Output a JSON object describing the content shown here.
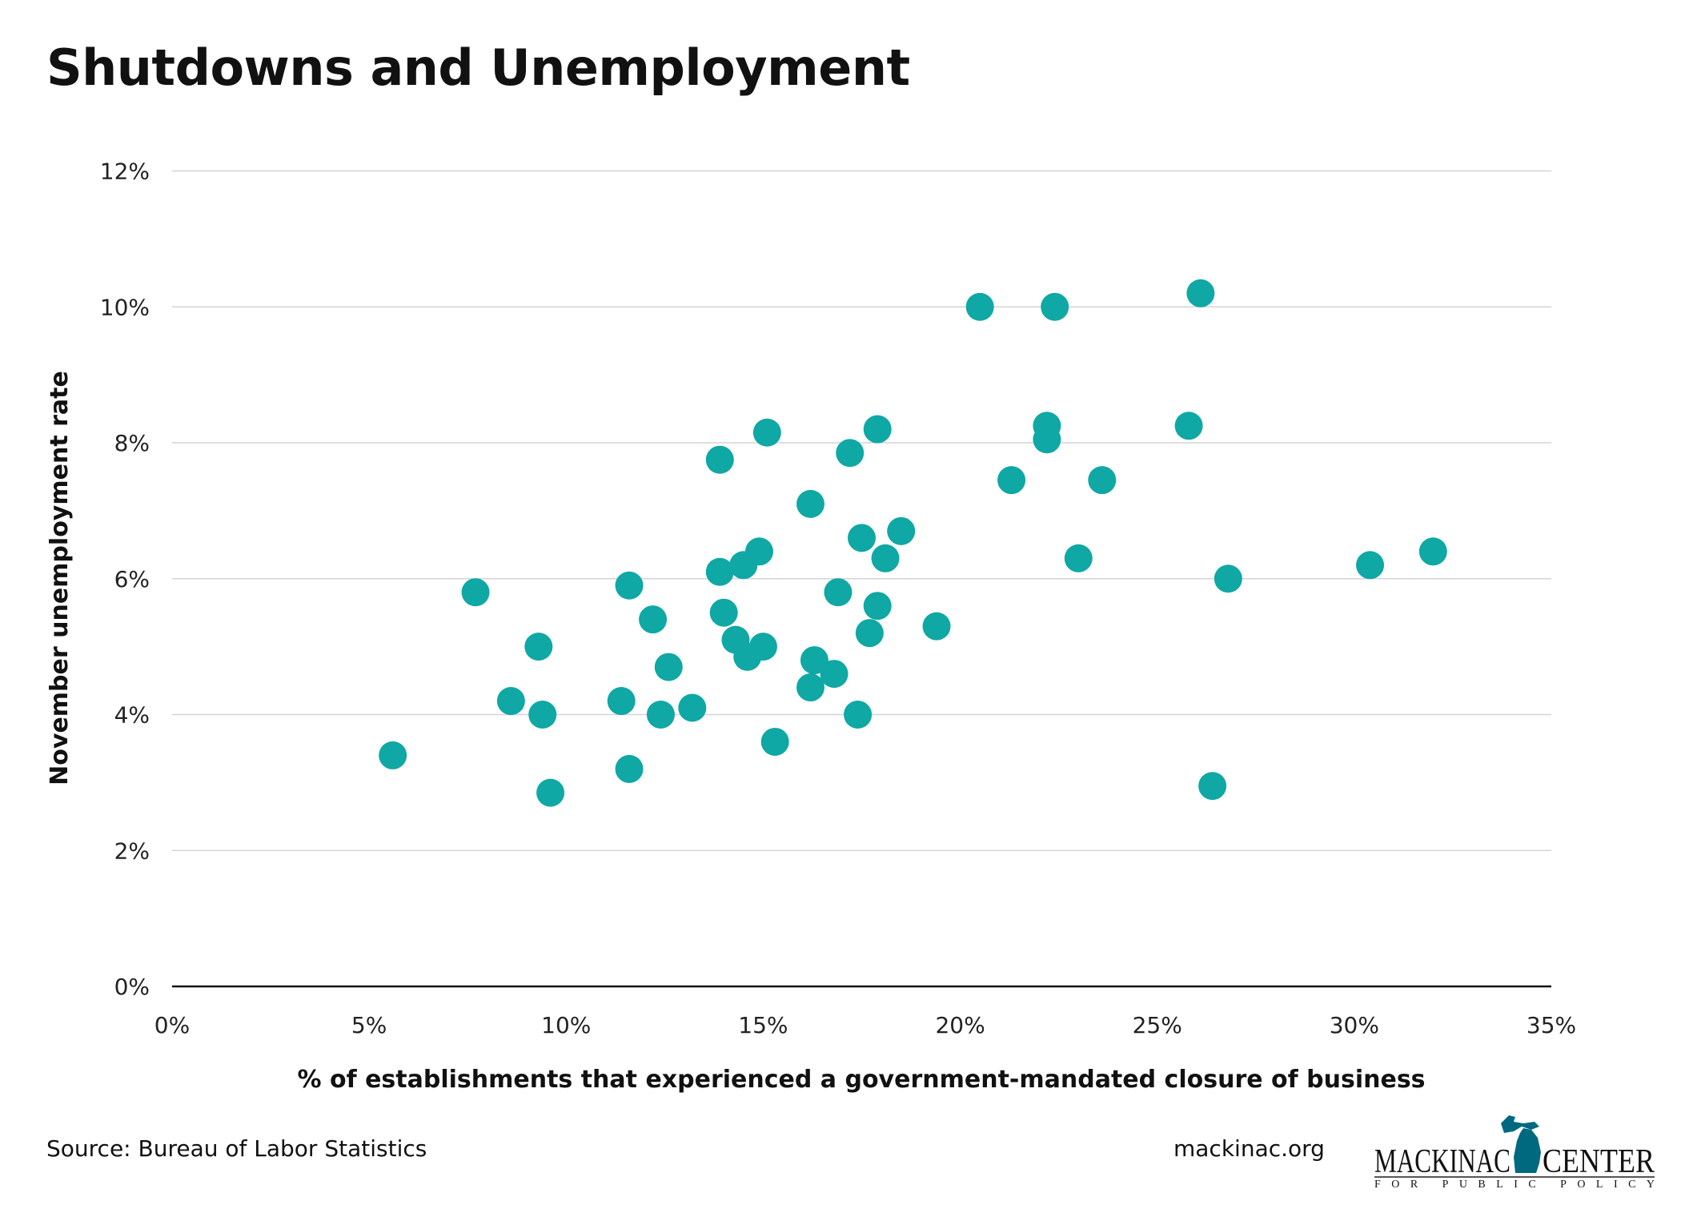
{
  "chart_data": {
    "type": "scatter",
    "title": "Shutdowns and Unemployment",
    "xlabel": "% of establishments that experienced a government-mandated closure of business",
    "ylabel": "November unemployment rate",
    "xlim": [
      0,
      35
    ],
    "ylim": [
      0,
      12
    ],
    "xticks": [
      0,
      5,
      10,
      15,
      20,
      25,
      30,
      35
    ],
    "xtick_labels": [
      "0%",
      "5%",
      "10%",
      "15%",
      "20%",
      "25%",
      "30%",
      "35%"
    ],
    "yticks": [
      0,
      2,
      4,
      6,
      8,
      10,
      12
    ],
    "ytick_labels": [
      "0%",
      "2%",
      "4%",
      "6%",
      "8%",
      "10%",
      "12%"
    ],
    "grid": "horizontal",
    "color": "#0fa8a4",
    "points": [
      [
        5.6,
        3.4
      ],
      [
        7.7,
        5.8
      ],
      [
        8.6,
        4.2
      ],
      [
        9.3,
        5.0
      ],
      [
        9.4,
        4.0
      ],
      [
        9.6,
        2.85
      ],
      [
        11.4,
        4.2
      ],
      [
        11.6,
        5.9
      ],
      [
        11.6,
        3.2
      ],
      [
        12.2,
        5.4
      ],
      [
        12.4,
        4.0
      ],
      [
        12.6,
        4.7
      ],
      [
        13.2,
        4.1
      ],
      [
        13.9,
        7.75
      ],
      [
        13.9,
        6.1
      ],
      [
        14.0,
        5.5
      ],
      [
        14.3,
        5.1
      ],
      [
        14.5,
        6.2
      ],
      [
        14.6,
        4.85
      ],
      [
        14.9,
        6.4
      ],
      [
        15.0,
        5.0
      ],
      [
        15.1,
        8.15
      ],
      [
        15.3,
        3.6
      ],
      [
        16.2,
        7.1
      ],
      [
        16.2,
        4.4
      ],
      [
        16.3,
        4.8
      ],
      [
        16.8,
        4.6
      ],
      [
        16.9,
        5.8
      ],
      [
        17.2,
        7.85
      ],
      [
        17.4,
        4.0
      ],
      [
        17.5,
        6.6
      ],
      [
        17.7,
        5.2
      ],
      [
        17.9,
        5.6
      ],
      [
        17.9,
        8.2
      ],
      [
        18.1,
        6.3
      ],
      [
        18.5,
        6.7
      ],
      [
        19.4,
        5.3
      ],
      [
        20.5,
        10.0
      ],
      [
        21.3,
        7.45
      ],
      [
        22.2,
        8.25
      ],
      [
        22.2,
        8.05
      ],
      [
        22.4,
        10.0
      ],
      [
        23.0,
        6.3
      ],
      [
        23.6,
        7.45
      ],
      [
        25.8,
        8.25
      ],
      [
        26.1,
        10.2
      ],
      [
        26.4,
        2.95
      ],
      [
        26.8,
        6.0
      ],
      [
        30.4,
        6.2
      ],
      [
        32.0,
        6.4
      ]
    ]
  },
  "footer": {
    "source": "Source: Bureau of Labor Statistics",
    "site": "mackinac.org",
    "logo_text": "MACKINAC CENTER",
    "logo_subtext": "FOR PUBLIC POLICY",
    "logo_color": "#00697f"
  }
}
